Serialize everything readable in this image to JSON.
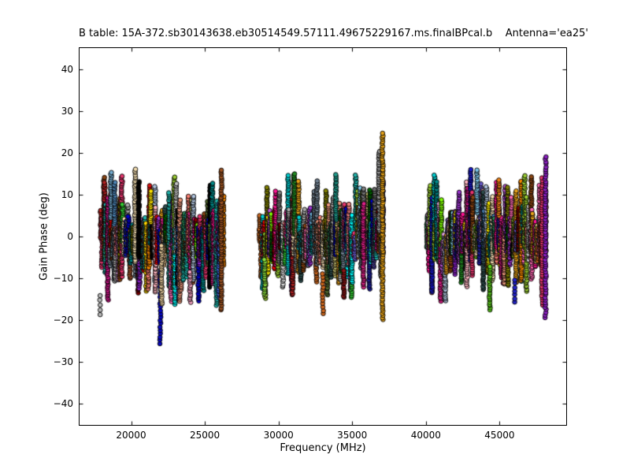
{
  "figure": {
    "background": "#ffffff",
    "axes_edge_color": "#000000"
  },
  "chart_data": {
    "type": "scatter",
    "title": "B table: 15A-372.sb30143638.eb30514549.57111.49675229167.ms.finalBPcal.b    Antenna='ea25'",
    "xlabel": "Frequency (MHz)",
    "ylabel": "Gain Phase (deg)",
    "xlim": [
      16500,
      49520
    ],
    "ylim": [
      -45,
      45
    ],
    "xticks": [
      20000,
      25000,
      30000,
      35000,
      40000,
      45000
    ],
    "yticks": [
      -40,
      -30,
      -20,
      -10,
      0,
      10,
      20,
      30,
      40
    ],
    "grid": false,
    "legend": "none",
    "marker": {
      "shape": "circle",
      "radius_px": 2.8,
      "edge_color": "#000000",
      "edge_width": 0.9
    },
    "description": "Per-channel bandpass gain-phase solutions for antenna ea25; dense vertical columns of colored circles in three receiver bands, bulk phases within about ±13 deg around 0.",
    "column_step_deg": 0.45,
    "seed": 7,
    "bands": [
      {
        "name": "K band",
        "freq_range": [
          17950,
          26280
        ],
        "columns": 108,
        "phase_envelope": [
          -17.5,
          16.2
        ]
      },
      {
        "name": "Ka band",
        "freq_range": [
          28700,
          37120
        ],
        "columns": 106,
        "phase_envelope": [
          -18.0,
          15.2
        ]
      },
      {
        "name": "Q band",
        "freq_range": [
          40020,
          48180
        ],
        "columns": 104,
        "phase_envelope": [
          -17.5,
          16.2
        ]
      }
    ],
    "feature_columns": [
      {
        "label": "grey-isolated-low",
        "freq": 17880,
        "color": "#b8b8b8",
        "phase_min": -18.6,
        "phase_max": -13.2,
        "dot_step": 1.1
      },
      {
        "label": "sky-blue-cap",
        "freq": 18640,
        "color": "#74add1",
        "phase_min": 4.5,
        "phase_max": 15.4
      },
      {
        "label": "steel-blue-cap",
        "freq": 18880,
        "color": "#4f86b8",
        "phase_min": 3.0,
        "phase_max": 13.2
      },
      {
        "label": "wheat-tall",
        "freq": 20270,
        "color": "#f2dcaf",
        "phase_min": -6.0,
        "phase_max": 16.2
      },
      {
        "label": "black-cap",
        "freq": 20520,
        "color": "#050505",
        "phase_min": -5.0,
        "phase_max": 13.1
      },
      {
        "label": "red-cap",
        "freq": 21240,
        "color": "#dd1111",
        "phase_min": 4.8,
        "phase_max": 12.4
      },
      {
        "label": "yellow-cap",
        "freq": 21340,
        "color": "#ffe400",
        "phase_min": 3.5,
        "phase_max": 10.8
      },
      {
        "label": "navy-deep-low",
        "freq": 21980,
        "color": "#0808c0",
        "phase_min": -25.6,
        "phase_max": -7.5,
        "dot_step": 0.8
      },
      {
        "label": "wheat-low",
        "freq": 22070,
        "color": "#ecd0a0",
        "phase_min": -16.2,
        "phase_max": -2.0
      },
      {
        "label": "pink-low",
        "freq": 24010,
        "color": "#f2a0c0",
        "phase_min": -15.6,
        "phase_max": -8.0
      },
      {
        "label": "sienna-tall",
        "freq": 26120,
        "color": "#9c5221",
        "phase_min": -17.6,
        "phase_max": 16.3,
        "dot_step": 0.55
      },
      {
        "label": "lime-low",
        "freq": 29060,
        "color": "#8ade3c",
        "phase_min": -13.6,
        "phase_max": -5.5
      },
      {
        "label": "chocolate-low",
        "freq": 33010,
        "color": "#cd661d",
        "phase_min": -18.4,
        "phase_max": -8.5,
        "dot_step": 0.8
      },
      {
        "label": "teal-cap",
        "freq": 33890,
        "color": "#1f9e8e",
        "phase_min": 4.0,
        "phase_max": 15.1
      },
      {
        "label": "dark-red-low",
        "freq": 34440,
        "color": "#8e1616",
        "phase_min": -14.6,
        "phase_max": -8.0
      },
      {
        "label": "magenta-column",
        "freq": 35760,
        "color": "#e0218a",
        "phase_min": -12.0,
        "phase_max": 8.2
      },
      {
        "label": "silver-tall",
        "freq": 36830,
        "color": "#9c9c9c",
        "phase_min": 1.5,
        "phase_max": 20.7
      },
      {
        "label": "goldenrod-tall",
        "freq": 37060,
        "color": "#e5a117",
        "phase_min": -19.9,
        "phase_max": 24.6,
        "dot_step": 0.5
      },
      {
        "label": "sky-blue-cap-q",
        "freq": 43470,
        "color": "#7cc4e8",
        "phase_min": 5.5,
        "phase_max": 16.2
      },
      {
        "label": "lime-low-q",
        "freq": 44330,
        "color": "#5fd41e",
        "phase_min": -17.5,
        "phase_max": -7.0
      },
      {
        "label": "orange-cap-q",
        "freq": 44950,
        "color": "#f08418",
        "phase_min": 5.0,
        "phase_max": 13.8
      },
      {
        "label": "blue-isolated-low",
        "freq": 46060,
        "color": "#2222cc",
        "phase_min": -15.7,
        "phase_max": -10.2,
        "dot_step": 0.9
      },
      {
        "label": "crimson-pink-tall",
        "freq": 47890,
        "color": "#e8356e",
        "phase_min": -16.3,
        "phase_max": 14.3,
        "dot_step": 0.55
      },
      {
        "label": "purple-tall",
        "freq": 48120,
        "color": "#8d1fc4",
        "phase_min": -19.3,
        "phase_max": 19.2,
        "dot_step": 0.6
      }
    ],
    "palette": [
      "#000000",
      "#1f1f1f",
      "#7f0000",
      "#b22222",
      "#ff0000",
      "#e8356e",
      "#ff69b4",
      "#ffb6c1",
      "#c71585",
      "#ff1493",
      "#e82090",
      "#dda0dd",
      "#ba55d3",
      "#9932cc",
      "#8a20c8",
      "#6a5acd",
      "#483d8b",
      "#2020a0",
      "#0000cd",
      "#1a1acc",
      "#4169e1",
      "#4682b4",
      "#6baed6",
      "#87ceeb",
      "#b0c4de",
      "#00ced1",
      "#00ffff",
      "#20b2aa",
      "#008b8b",
      "#2f4f4f",
      "#2e8b57",
      "#006400",
      "#228b22",
      "#32cd32",
      "#7fff00",
      "#9acd32",
      "#6b8e23",
      "#556b2f",
      "#808000",
      "#bdb76b",
      "#ffd700",
      "#ffee00",
      "#e8a21a",
      "#ff8c00",
      "#d2691e",
      "#a0522d",
      "#8b4513",
      "#deb887",
      "#f5deb3",
      "#fa8072",
      "#e9967a",
      "#f08080",
      "#dcdcdc",
      "#c0c0c0",
      "#a9a9a9",
      "#808080",
      "#696969",
      "#708090"
    ]
  }
}
